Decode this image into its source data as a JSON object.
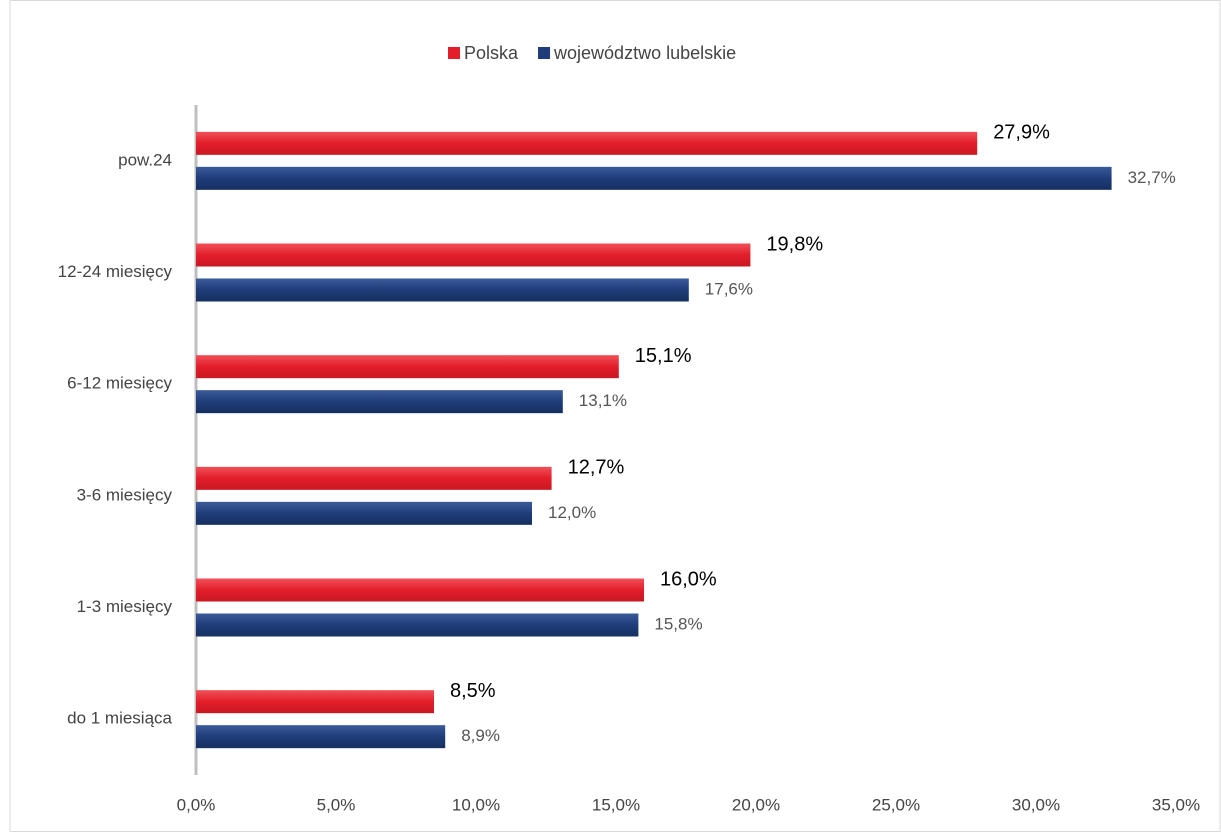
{
  "chart_data": {
    "type": "hbar",
    "categories": [
      "pow.24",
      "12-24 miesięcy",
      "6-12 miesięcy",
      "3-6 miesięcy",
      "1-3 miesięcy",
      "do 1 miesiąca"
    ],
    "series": [
      {
        "name": "Polska",
        "color": "#e31e2a",
        "values": [
          27.9,
          19.8,
          15.1,
          12.7,
          16.0,
          8.5
        ],
        "value_labels": [
          "27,9%",
          "19,8%",
          "15,1%",
          "12,7%",
          "16,0%",
          "8,5%"
        ]
      },
      {
        "name": "województwo lubelskie",
        "color": "#1f3d7a",
        "values": [
          32.7,
          17.6,
          13.1,
          12.0,
          15.8,
          8.9
        ],
        "value_labels": [
          "32,7%",
          "17,6%",
          "13,1%",
          "12,0%",
          "15,8%",
          "8,9%"
        ]
      }
    ],
    "xlim": [
      0,
      35
    ],
    "xticks": [
      {
        "value": 0,
        "label": "0,0%"
      },
      {
        "value": 5,
        "label": "5,0%"
      },
      {
        "value": 10,
        "label": "10,0%"
      },
      {
        "value": 15,
        "label": "15,0%"
      },
      {
        "value": 20,
        "label": "20,0%"
      },
      {
        "value": 25,
        "label": "25,0%"
      },
      {
        "value": 30,
        "label": "30,0%"
      },
      {
        "value": 35,
        "label": "35,0%"
      }
    ],
    "legend": "top"
  }
}
